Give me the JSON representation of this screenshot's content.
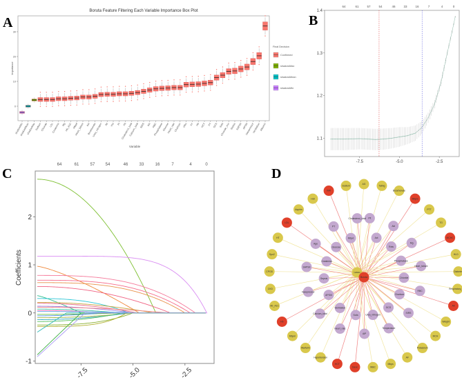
{
  "panels": {
    "a": "A",
    "b": "B",
    "c": "C",
    "d": "D"
  },
  "chart_data": [
    {
      "type": "box",
      "panel": "A",
      "title": "Boruta Feature Filtering Each Variable Importance Box Plot",
      "xlabel": "Variable",
      "ylabel": "Importance",
      "ylim": [
        -6,
        36
      ],
      "yticks": [
        0,
        10,
        20,
        30
      ],
      "legend": {
        "title": "Final Decision",
        "position": "right",
        "entries": [
          "Confirmed",
          "shadowMax",
          "shadowMean",
          "shadowMin"
        ]
      },
      "colors": {
        "Confirmed": "#F8766D",
        "shadowMax": "#7CAE00",
        "shadowMean": "#00BFC4",
        "shadowMin": "#C77CFF"
      },
      "boxes": [
        {
          "name": "shadowMin",
          "group": "shadowMin",
          "median": -2.5
        },
        {
          "name": "shadowMean",
          "group": "shadowMean",
          "median": 0
        },
        {
          "name": "shadowMax",
          "group": "shadowMax",
          "median": 2.5
        },
        {
          "name": "Sodium",
          "group": "Confirmed",
          "median": 2.7
        },
        {
          "name": "Chloride",
          "group": "Confirmed",
          "median": 2.7
        },
        {
          "name": "LDL",
          "group": "Confirmed",
          "median": 2.7
        },
        {
          "name": "Creatinine",
          "group": "Confirmed",
          "median": 3.0
        },
        {
          "name": "Mg",
          "group": "Confirmed",
          "median": 3.0
        },
        {
          "name": "Hb_A1C",
          "group": "Confirmed",
          "median": 3.2
        },
        {
          "name": "Mbpd",
          "group": "Confirmed",
          "median": 3.3
        },
        {
          "name": "Heart_failure",
          "group": "Confirmed",
          "median": 3.7
        },
        {
          "name": "Act",
          "group": "Confirmed",
          "median": 3.7
        },
        {
          "name": "Bicarbonate",
          "group": "Confirmed",
          "median": 4.0
        },
        {
          "name": "Urea_nitrogen",
          "group": "Confirmed",
          "median": 4.7
        },
        {
          "name": "Alt",
          "group": "Confirmed",
          "median": 4.8
        },
        {
          "name": "Hct",
          "group": "Confirmed",
          "median": 4.8
        },
        {
          "name": "Pt",
          "group": "Confirmed",
          "median": 5.0
        },
        {
          "name": "Plt",
          "group": "Confirmed",
          "median": 5.0
        },
        {
          "name": "Cholesterol_total",
          "group": "Confirmed",
          "median": 5.2
        },
        {
          "name": "Calcium_total",
          "group": "Confirmed",
          "median": 5.5
        },
        {
          "name": "SIRS",
          "group": "Confirmed",
          "median": 6.0
        },
        {
          "name": "Aki",
          "group": "Confirmed",
          "median": 6.5
        },
        {
          "name": "RBC",
          "group": "Confirmed",
          "median": 7.0
        },
        {
          "name": "Phosphatase",
          "group": "Confirmed",
          "median": 7.2
        },
        {
          "name": "Glucose",
          "group": "Confirmed",
          "median": 7.3
        },
        {
          "name": "Heart_rate",
          "group": "Confirmed",
          "median": 7.5
        },
        {
          "name": "Charlson",
          "group": "Confirmed",
          "median": 7.5
        },
        {
          "name": "Wbc",
          "group": "Confirmed",
          "median": 8.7
        },
        {
          "name": "Inr",
          "group": "Confirmed",
          "median": 8.8
        },
        {
          "name": "Hb",
          "group": "Confirmed",
          "median": 8.9
        },
        {
          "name": "HCT",
          "group": "Confirmed",
          "median": 9.2
        },
        {
          "name": "PT",
          "group": "Confirmed",
          "median": 9.5
        },
        {
          "name": "GCS",
          "group": "Confirmed",
          "median": 11.5
        },
        {
          "name": "Sofa",
          "group": "Confirmed",
          "median": 12.5
        },
        {
          "name": "Chloride_min",
          "group": "Confirmed",
          "median": 14.0
        },
        {
          "name": "Sepsis",
          "group": "Confirmed",
          "median": 14.2
        },
        {
          "name": "SAPSII",
          "group": "Confirmed",
          "median": 15.0
        },
        {
          "name": "APSIII",
          "group": "Confirmed",
          "median": 15.8
        },
        {
          "name": "Vasopressor",
          "group": "Confirmed",
          "median": 18.0
        },
        {
          "name": "Ventilation",
          "group": "Confirmed",
          "median": 20.3
        },
        {
          "name": "Albumin",
          "group": "Confirmed",
          "median": 32.3
        }
      ]
    },
    {
      "type": "line",
      "panel": "B",
      "xlim": [
        -9.7,
        -1.25
      ],
      "ylim": [
        1.057,
        1.4
      ],
      "xticks": [
        "-7.5",
        "-5.0",
        "-2.5"
      ],
      "xtick_values": [
        -7.5,
        -5.0,
        -2.5
      ],
      "yticks": [
        "1.1",
        "1.2",
        "1.3",
        "1.4"
      ],
      "ytick_values": [
        1.1,
        1.2,
        1.3,
        1.4
      ],
      "top_ticks": [
        "64",
        "61",
        "57",
        "54",
        "46",
        "33",
        "16",
        "7",
        "4",
        "0"
      ],
      "lambda_min": -6.28,
      "lambda_1se": -3.58,
      "curve": {
        "x": [
          -9.3,
          -8.5,
          -7.5,
          -6.5,
          -6.0,
          -5.5,
          -5.0,
          -4.5,
          -4.0,
          -3.6,
          -3.2,
          -2.8,
          -2.4,
          -2.0,
          -1.7,
          -1.5
        ],
        "mean": [
          1.098,
          1.098,
          1.099,
          1.097,
          1.098,
          1.1,
          1.103,
          1.106,
          1.112,
          1.125,
          1.148,
          1.18,
          1.23,
          1.3,
          1.35,
          1.385
        ],
        "se": [
          0.026,
          0.026,
          0.025,
          0.025,
          0.025,
          0.024,
          0.023,
          0.02,
          0.018,
          0.015,
          0.012,
          0.01,
          0.008,
          0.006,
          0.004,
          0.002
        ]
      }
    },
    {
      "type": "line",
      "panel": "C",
      "ylabel": "Coefficients",
      "xlim": [
        -9.7,
        -1.1
      ],
      "ylim": [
        -1.05,
        2.95
      ],
      "xticks": [
        "-7.5",
        "-5.0",
        "-2.5"
      ],
      "xtick_values": [
        -7.5,
        -5.0,
        -2.5
      ],
      "yticks": [
        "-1",
        "0",
        "1",
        "2"
      ],
      "ytick_values": [
        -1,
        0,
        1,
        2
      ],
      "top_ticks": [
        "64",
        "61",
        "57",
        "54",
        "46",
        "33",
        "16",
        "7",
        "4",
        "0"
      ],
      "series": [
        {
          "start": 2.78,
          "zero_at": -3.9,
          "shape": 2.0,
          "color": "#7CBF2F"
        },
        {
          "start": 1.18,
          "zero_at": -1.45,
          "shape": 6,
          "color": "#D98CF2"
        },
        {
          "start": 0.97,
          "zero_at": -4.7,
          "shape": 1.3,
          "color": "#F0883A"
        },
        {
          "start": 0.78,
          "zero_at": -2.0,
          "shape": 3,
          "color": "#F5789A"
        },
        {
          "start": 0.68,
          "zero_at": -2.25,
          "shape": 3,
          "color": "#F56B8A"
        },
        {
          "start": 0.63,
          "zero_at": -2.5,
          "shape": 3,
          "color": "#E8924A"
        },
        {
          "start": 0.55,
          "zero_at": -3.2,
          "shape": 2,
          "color": "#F06080"
        },
        {
          "start": 0.36,
          "zero_at": -7.5,
          "shape": 1.2,
          "color": "#2EBE8C"
        },
        {
          "start": 0.3,
          "zero_at": -5.2,
          "shape": 2.5,
          "color": "#2CC6D6"
        },
        {
          "start": 0.22,
          "zero_at": -4.0,
          "shape": 2,
          "color": "#C9A23C"
        },
        {
          "start": 0.2,
          "zero_at": -4.8,
          "shape": 2,
          "color": "#E96A8C"
        },
        {
          "start": 0.14,
          "zero_at": -5.0,
          "shape": 2,
          "color": "#9B7FE0"
        },
        {
          "start": 0.12,
          "zero_at": -3.3,
          "shape": 2,
          "color": "#F08080"
        },
        {
          "start": 0.08,
          "zero_at": -5.6,
          "shape": 2,
          "color": "#3FC0A0"
        },
        {
          "start": 0.05,
          "zero_at": -6.0,
          "shape": 2,
          "color": "#F472B6"
        },
        {
          "start": 0.03,
          "zero_at": -4.5,
          "shape": 2,
          "color": "#5AB0F0"
        },
        {
          "start": -0.03,
          "zero_at": -5.4,
          "shape": 2,
          "color": "#70C040"
        },
        {
          "start": -0.06,
          "zero_at": -6.5,
          "shape": 2,
          "color": "#4A90E2"
        },
        {
          "start": -0.1,
          "zero_at": -5.0,
          "shape": 2,
          "color": "#A0B040"
        },
        {
          "start": -0.14,
          "zero_at": -5.2,
          "shape": 2,
          "color": "#2EA8C0"
        },
        {
          "start": -0.18,
          "zero_at": -5.5,
          "shape": 2,
          "color": "#5AC060"
        },
        {
          "start": -0.25,
          "zero_at": -5.0,
          "shape": 3,
          "color": "#8AB030"
        },
        {
          "start": -0.28,
          "zero_at": -5.3,
          "shape": 4,
          "color": "#B0B030"
        },
        {
          "start": -0.4,
          "zero_at": -8.2,
          "shape": 1,
          "color": "#2EB8B8"
        },
        {
          "start": -0.87,
          "zero_at": -7.5,
          "shape": 1,
          "color": "#3CB043"
        },
        {
          "start": -0.91,
          "zero_at": -7.3,
          "shape": 1,
          "color": "#A99AF5"
        }
      ]
    }
  ],
  "network": {
    "panel": "D",
    "colors": {
      "center": "#E0402A",
      "boruta": "#E0402A",
      "lasso": "#D9C84C",
      "both": "#C3A8CF",
      "edge_boruta": "#F08080",
      "edge_lasso": "#F2E6A0"
    },
    "hubs": [
      {
        "name": "Lasso",
        "group": "lasso"
      },
      {
        "name": "Boruta",
        "group": "center"
      }
    ],
    "outer": [
      {
        "name": "AG",
        "group": "lasso"
      },
      {
        "name": "Tating",
        "group": "lasso"
      },
      {
        "name": "Bicarbonate",
        "group": "lasso"
      },
      {
        "name": "MbpS",
        "group": "boruta"
      },
      {
        "name": "PTT",
        "group": "lasso"
      },
      {
        "name": "TG",
        "group": "lasso"
      },
      {
        "name": "MCHC",
        "group": "boruta"
      },
      {
        "name": "HLD",
        "group": "lasso"
      },
      {
        "name": "Diabetes",
        "group": "lasso"
      },
      {
        "name": "Respiratory_rate",
        "group": "lasso"
      },
      {
        "name": "Alt",
        "group": "boruta"
      },
      {
        "name": "Weight",
        "group": "lasso"
      },
      {
        "name": "MCH",
        "group": "lasso"
      },
      {
        "name": "Potassium",
        "group": "lasso"
      },
      {
        "name": "AF",
        "group": "lasso"
      },
      {
        "name": "Mbps",
        "group": "lasso"
      },
      {
        "name": "WBC",
        "group": "lasso"
      },
      {
        "name": "Dexs",
        "group": "boruta"
      },
      {
        "name": "HCT",
        "group": "boruta"
      },
      {
        "name": "Hypertension",
        "group": "lasso"
      },
      {
        "name": "Warfarin",
        "group": "lasso"
      },
      {
        "name": "Mbpm",
        "group": "lasso"
      },
      {
        "name": "Hb",
        "group": "boruta"
      },
      {
        "name": "Hb_A1C",
        "group": "lasso"
      },
      {
        "name": "CKD",
        "group": "lasso"
      },
      {
        "name": "CPOD",
        "group": "lasso"
      },
      {
        "name": "Spo2",
        "group": "lasso"
      },
      {
        "name": "HT",
        "group": "lasso"
      },
      {
        "name": "LDL",
        "group": "boruta"
      },
      {
        "name": "Aspirin",
        "group": "lasso"
      },
      {
        "name": "Hdl",
        "group": "lasso"
      },
      {
        "name": "INR",
        "group": "boruta"
      },
      {
        "name": "Sodium",
        "group": "lasso"
      }
    ],
    "inner": [
      {
        "name": "Plt"
      },
      {
        "name": "Act"
      },
      {
        "name": "Aki"
      },
      {
        "name": "Rdw"
      },
      {
        "name": "Mg"
      },
      {
        "name": "Phosphatase"
      },
      {
        "name": "Heart_failure"
      },
      {
        "name": "Chloride"
      },
      {
        "name": "RBC"
      },
      {
        "name": "Charlson"
      },
      {
        "name": "SIRS"
      },
      {
        "name": "GCS"
      },
      {
        "name": "Temperature"
      },
      {
        "name": "Urea_nitrogen"
      },
      {
        "name": "AlP"
      },
      {
        "name": "Sofa"
      },
      {
        "name": "Heart_rate"
      },
      {
        "name": "Ventilation"
      },
      {
        "name": "Calcium_total"
      },
      {
        "name": "APSIII"
      },
      {
        "name": "Vasopressor"
      },
      {
        "name": "Sepsis"
      },
      {
        "name": "SAPSII"
      },
      {
        "name": "Creatinine"
      },
      {
        "name": "Age"
      },
      {
        "name": "Glucose"
      },
      {
        "name": "PT"
      },
      {
        "name": "Mbpd"
      },
      {
        "name": "Cholesterol_total"
      }
    ]
  }
}
